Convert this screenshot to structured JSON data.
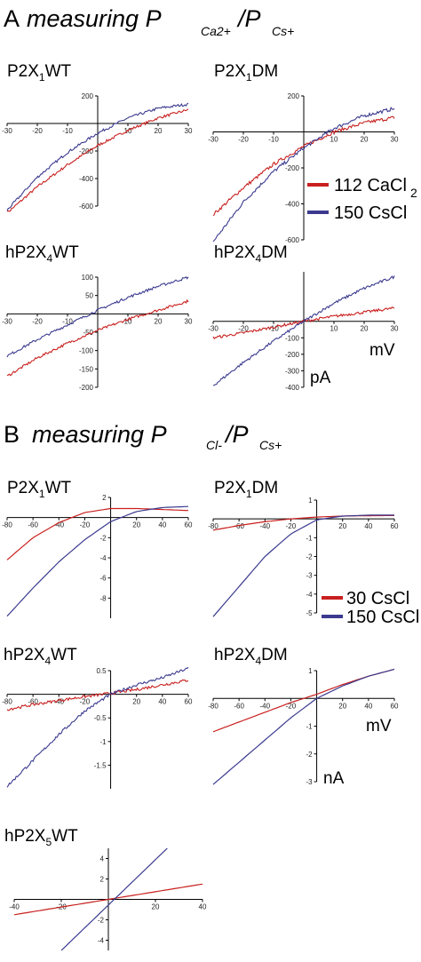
{
  "sections": [
    {
      "letter": "A",
      "title": "measuring P",
      "sub1": "Ca2+",
      "sep": "/P",
      "sub2": "Cs+"
    },
    {
      "letter": "B",
      "title": "measuring P",
      "sub1": "Cl-",
      "sep": "/P",
      "sub2": "Cs+"
    }
  ],
  "legends": [
    {
      "items": [
        {
          "main": "112 CaCl",
          "sub": "2",
          "color": "#c8201e"
        },
        {
          "main": "150 CsCl",
          "sub": "",
          "color": "#3b3a8f"
        }
      ]
    },
    {
      "items": [
        {
          "main": "30 CsCl",
          "sub": "",
          "color": "#c8201e"
        },
        {
          "main": "150 CsCl",
          "sub": "",
          "color": "#3b3a8f"
        }
      ]
    }
  ],
  "units": {
    "a_x": "mV",
    "a_y": "pA",
    "b_x": "mV",
    "b_y": "nA"
  },
  "colors": {
    "red": "#c8201e",
    "blue": "#3b3a8f"
  },
  "chart_data": [
    {
      "type": "line",
      "panel": "A",
      "title_pre": "P2X",
      "title_sub": "1",
      "title_post": "WT",
      "xlim": [
        -30,
        30
      ],
      "ylim": [
        -600,
        200
      ],
      "xticks": [
        -30,
        -20,
        -10,
        10,
        20,
        30
      ],
      "yticks": [
        200,
        -200,
        -400,
        -600
      ],
      "noisy": true,
      "series": [
        {
          "color": "red",
          "x": [
            -30,
            -20,
            -10,
            0,
            10,
            20,
            30
          ],
          "y": [
            -650,
            -460,
            -300,
            -160,
            -50,
            40,
            100
          ]
        },
        {
          "color": "blue",
          "x": [
            -30,
            -20,
            -10,
            0,
            10,
            20,
            30
          ],
          "y": [
            -630,
            -390,
            -210,
            -70,
            40,
            110,
            140
          ]
        }
      ]
    },
    {
      "type": "line",
      "panel": "A",
      "title_pre": "P2X",
      "title_sub": "1",
      "title_post": "DM",
      "xlim": [
        -30,
        30
      ],
      "ylim": [
        -600,
        200
      ],
      "xticks": [
        -30,
        -20,
        -10,
        10,
        20,
        30
      ],
      "yticks": [
        200,
        -200,
        -400,
        -600
      ],
      "noisy": true,
      "series": [
        {
          "color": "red",
          "x": [
            -30,
            -20,
            -10,
            0,
            10,
            20,
            30
          ],
          "y": [
            -460,
            -310,
            -180,
            -80,
            0,
            50,
            80
          ]
        },
        {
          "color": "blue",
          "x": [
            -30,
            -20,
            -10,
            0,
            10,
            20,
            30
          ],
          "y": [
            -610,
            -390,
            -220,
            -90,
            20,
            90,
            130
          ]
        }
      ]
    },
    {
      "type": "line",
      "panel": "A",
      "title_pre": "hP2X",
      "title_sub": "4",
      "title_post": "WT",
      "xlim": [
        -30,
        30
      ],
      "ylim": [
        -200,
        100
      ],
      "xticks": [
        -30,
        -20,
        -10,
        10,
        20,
        30
      ],
      "yticks": [
        100,
        50,
        -50,
        -100,
        -150,
        -200
      ],
      "noisy": true,
      "series": [
        {
          "color": "red",
          "x": [
            -30,
            -20,
            -10,
            0,
            10,
            20,
            30
          ],
          "y": [
            -170,
            -120,
            -80,
            -45,
            -15,
            10,
            35
          ]
        },
        {
          "color": "blue",
          "x": [
            -30,
            -20,
            -10,
            0,
            10,
            20,
            30
          ],
          "y": [
            -115,
            -70,
            -30,
            10,
            45,
            75,
            100
          ]
        }
      ]
    },
    {
      "type": "line",
      "panel": "A",
      "title_pre": "hP2X",
      "title_sub": "4",
      "title_post": "DM",
      "xlim": [
        -30,
        30
      ],
      "ylim": [
        -400,
        300
      ],
      "xticks": [
        -30,
        -20,
        -10,
        10,
        20,
        30
      ],
      "yticks": [
        -100,
        -200,
        -300,
        -400
      ],
      "noisy": true,
      "series": [
        {
          "color": "red",
          "x": [
            -30,
            -20,
            -10,
            0,
            10,
            20,
            30
          ],
          "y": [
            -100,
            -70,
            -35,
            0,
            30,
            55,
            80
          ]
        },
        {
          "color": "blue",
          "x": [
            -30,
            -20,
            -10,
            0,
            10,
            20,
            30
          ],
          "y": [
            -390,
            -250,
            -120,
            0,
            110,
            200,
            270
          ]
        }
      ]
    },
    {
      "type": "line",
      "panel": "B",
      "title_pre": "P2X",
      "title_sub": "1",
      "title_post": "WT",
      "xlim": [
        -80,
        60
      ],
      "ylim": [
        -10,
        2
      ],
      "xticks": [
        -80,
        -60,
        -40,
        -20,
        20,
        40,
        60
      ],
      "yticks": [
        2,
        -2,
        -4,
        -6,
        -8
      ],
      "noisy": false,
      "series": [
        {
          "color": "red",
          "x": [
            -80,
            -60,
            -40,
            -20,
            0,
            20,
            40,
            60
          ],
          "y": [
            -4.2,
            -2.0,
            -0.5,
            0.5,
            0.9,
            0.9,
            0.8,
            0.7
          ]
        },
        {
          "color": "blue",
          "x": [
            -80,
            -60,
            -40,
            -20,
            0,
            20,
            40,
            60
          ],
          "y": [
            -9.8,
            -7.0,
            -4.4,
            -2.2,
            -0.4,
            0.6,
            1.0,
            1.1
          ]
        }
      ]
    },
    {
      "type": "line",
      "panel": "B",
      "title_pre": "P2X",
      "title_sub": "1",
      "title_post": "DM",
      "xlim": [
        -80,
        60
      ],
      "ylim": [
        -5,
        1
      ],
      "xticks": [
        -80,
        -60,
        -40,
        -20,
        20,
        40,
        60
      ],
      "yticks": [
        1,
        -1,
        -2,
        -3,
        -4,
        -5
      ],
      "noisy": false,
      "series": [
        {
          "color": "red",
          "x": [
            -80,
            -60,
            -40,
            -20,
            0,
            20,
            40,
            60
          ],
          "y": [
            -0.6,
            -0.35,
            -0.15,
            0.0,
            0.1,
            0.15,
            0.17,
            0.18
          ]
        },
        {
          "color": "blue",
          "x": [
            -80,
            -60,
            -40,
            -20,
            0,
            20,
            40,
            60
          ],
          "y": [
            -5.2,
            -3.6,
            -2.0,
            -0.8,
            -0.05,
            0.15,
            0.2,
            0.2
          ]
        }
      ]
    },
    {
      "type": "line",
      "panel": "B",
      "title_pre": "hP2X",
      "title_sub": "4",
      "title_post": "WT",
      "xlim": [
        -80,
        60
      ],
      "ylim": [
        -2,
        0.5
      ],
      "xticks": [
        -80,
        -60,
        -40,
        -20,
        20,
        40,
        60
      ],
      "yticks": [
        0.5,
        -0.5,
        -1.0,
        -1.5
      ],
      "noisy": true,
      "series": [
        {
          "color": "red",
          "x": [
            -80,
            -60,
            -40,
            -20,
            0,
            20,
            40,
            60
          ],
          "y": [
            -0.32,
            -0.22,
            -0.13,
            -0.05,
            0.02,
            0.1,
            0.2,
            0.3
          ]
        },
        {
          "color": "blue",
          "x": [
            -80,
            -60,
            -40,
            -20,
            0,
            20,
            40,
            60
          ],
          "y": [
            -1.95,
            -1.4,
            -0.85,
            -0.35,
            0.0,
            0.2,
            0.35,
            0.55
          ]
        }
      ]
    },
    {
      "type": "line",
      "panel": "B",
      "title_pre": "hP2X",
      "title_sub": "4",
      "title_post": "DM",
      "xlim": [
        -80,
        60
      ],
      "ylim": [
        -3,
        1
      ],
      "xticks": [
        -80,
        -60,
        -40,
        -20,
        20,
        40,
        60
      ],
      "yticks": [
        1,
        -1,
        -2,
        -3
      ],
      "noisy": false,
      "series": [
        {
          "color": "red",
          "x": [
            -80,
            -60,
            -40,
            -20,
            0,
            20,
            40,
            60
          ],
          "y": [
            -1.2,
            -0.85,
            -0.5,
            -0.15,
            0.15,
            0.5,
            0.8,
            1.05
          ]
        },
        {
          "color": "blue",
          "x": [
            -80,
            -60,
            -40,
            -20,
            0,
            20,
            40,
            60
          ],
          "y": [
            -3.1,
            -2.3,
            -1.5,
            -0.7,
            0.0,
            0.45,
            0.8,
            1.05
          ]
        }
      ]
    },
    {
      "type": "line",
      "panel": "B",
      "title_pre": "hP2X",
      "title_sub": "5",
      "title_post": "WT",
      "xlim": [
        -40,
        40
      ],
      "ylim": [
        -5,
        5
      ],
      "xticks": [
        -40,
        -20,
        20,
        40
      ],
      "yticks": [
        4,
        2,
        -2,
        -4
      ],
      "noisy": false,
      "series": [
        {
          "color": "red",
          "x": [
            -40,
            40
          ],
          "y": [
            -1.5,
            1.5
          ]
        },
        {
          "color": "blue",
          "x": [
            -20,
            25
          ],
          "y": [
            -5,
            5
          ]
        }
      ]
    }
  ]
}
